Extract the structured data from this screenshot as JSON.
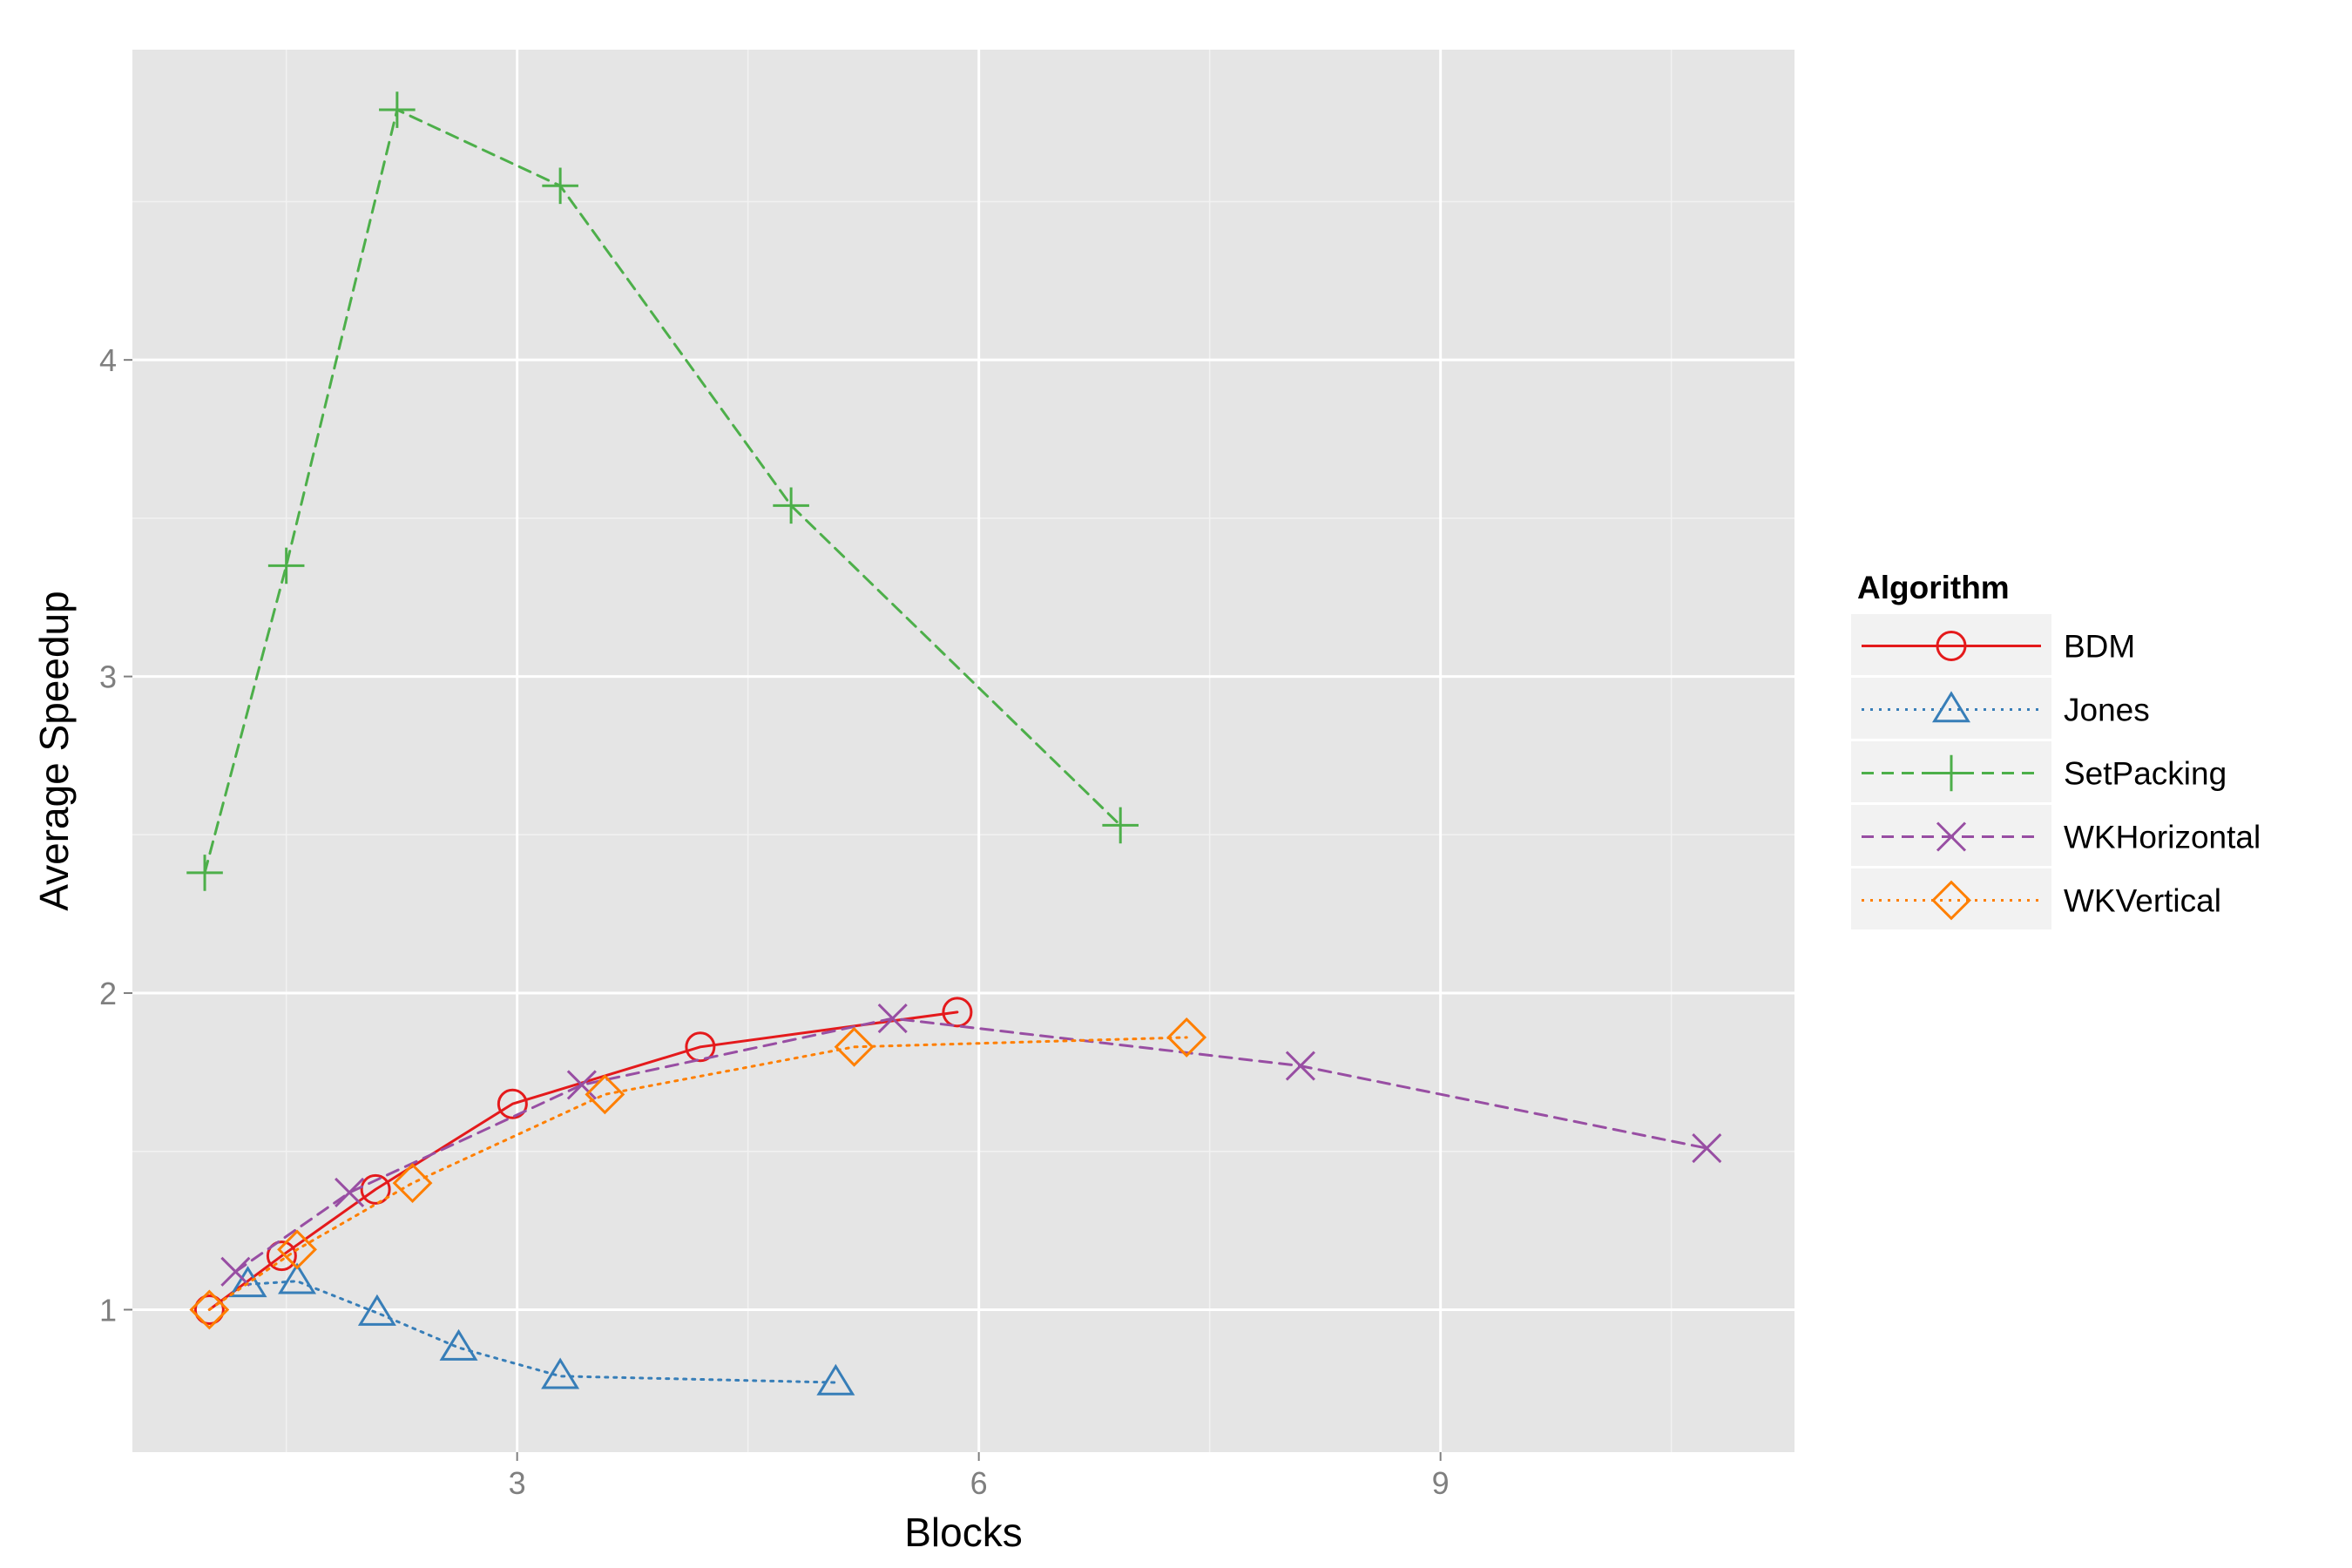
{
  "chart_data": {
    "type": "line",
    "xlabel": "Blocks",
    "ylabel": "Average Speedup",
    "xlim": [
      0.5,
      11.3
    ],
    "ylim": [
      0.55,
      4.98
    ],
    "x_ticks": [
      3,
      6,
      9
    ],
    "x_tick_labels": [
      "3",
      "6",
      "9"
    ],
    "y_ticks": [
      1,
      2,
      3,
      4
    ],
    "y_tick_labels": [
      "1",
      "2",
      "3",
      "4"
    ],
    "grid": true,
    "legend": {
      "title": "Algorithm",
      "placement": "right"
    },
    "series": [
      {
        "name": "BDM",
        "color": "#e41a1c",
        "line_style": "solid",
        "marker": "circle",
        "x": [
          1.0,
          1.47,
          2.08,
          2.97,
          4.19,
          5.86
        ],
        "y": [
          1.0,
          1.17,
          1.38,
          1.65,
          1.83,
          1.94
        ]
      },
      {
        "name": "Jones",
        "color": "#377eb8",
        "line_style": "dotted",
        "marker": "triangle",
        "x": [
          1.25,
          1.57,
          2.09,
          2.62,
          3.28,
          5.07
        ],
        "y": [
          1.08,
          1.09,
          0.99,
          0.88,
          0.79,
          0.77
        ]
      },
      {
        "name": "SetPacking",
        "color": "#4daf4a",
        "line_style": "dashed",
        "marker": "plus",
        "x": [
          0.97,
          1.5,
          2.22,
          3.28,
          4.78,
          6.92
        ],
        "y": [
          2.38,
          3.35,
          4.79,
          4.55,
          3.54,
          2.53
        ]
      },
      {
        "name": "WKHorizontal",
        "color": "#984ea3",
        "line_style": "dashed",
        "marker": "x",
        "x": [
          1.17,
          1.91,
          3.42,
          5.44,
          8.09,
          10.73
        ],
        "y": [
          1.12,
          1.37,
          1.71,
          1.92,
          1.77,
          1.51
        ]
      },
      {
        "name": "WKVertical",
        "color": "#ff7f00",
        "line_style": "dotted",
        "marker": "diamond",
        "x": [
          1.0,
          1.57,
          2.32,
          3.57,
          5.19,
          7.35
        ],
        "y": [
          1.0,
          1.19,
          1.4,
          1.68,
          1.83,
          1.86
        ]
      }
    ]
  }
}
